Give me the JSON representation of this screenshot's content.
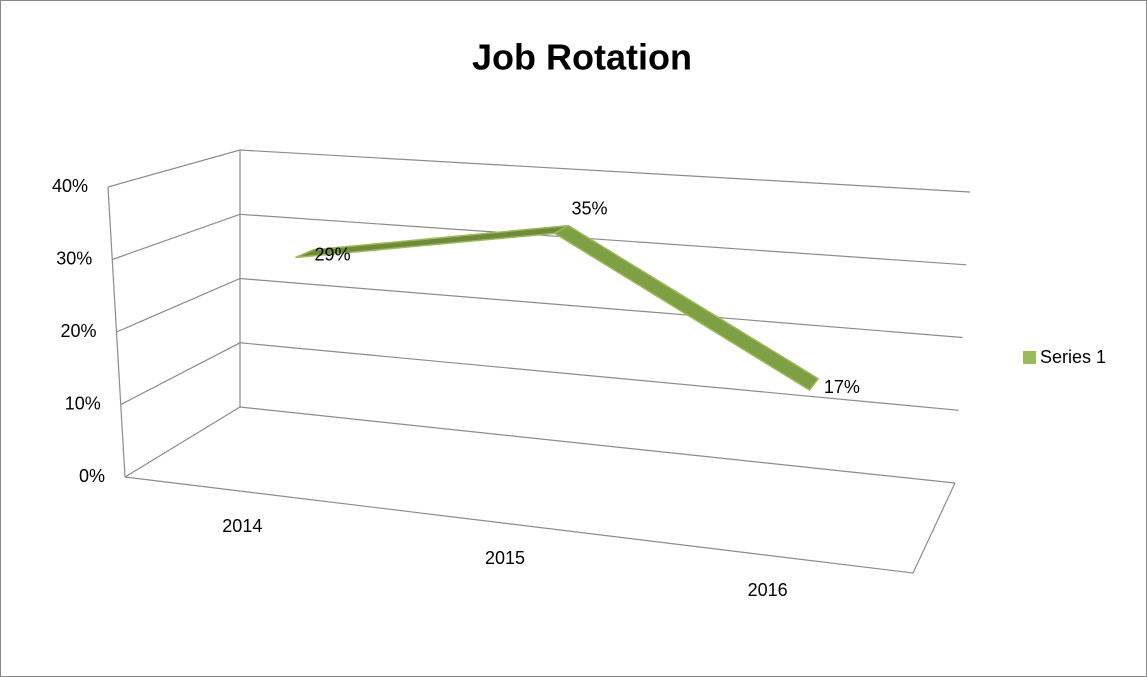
{
  "chart_data": {
    "type": "line3d",
    "title": "Job Rotation",
    "categories": [
      "2014",
      "2015",
      "2016"
    ],
    "series": [
      {
        "name": "Series 1",
        "color": "#9bbb59",
        "values": [
          29,
          35,
          17
        ],
        "value_labels": [
          "29%",
          "35%",
          "17%"
        ]
      }
    ],
    "ylim": [
      0,
      40
    ],
    "yticks": [
      {
        "value": 0,
        "label": "0%"
      },
      {
        "value": 10,
        "label": "10%"
      },
      {
        "value": 20,
        "label": "20%"
      },
      {
        "value": 30,
        "label": "30%"
      },
      {
        "value": 40,
        "label": "40%"
      }
    ],
    "grid": true,
    "legend": "right"
  }
}
